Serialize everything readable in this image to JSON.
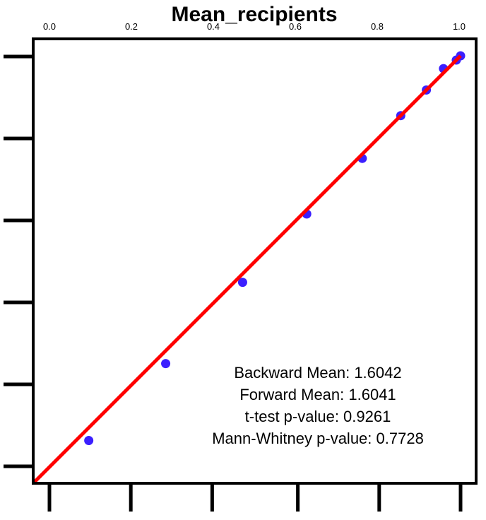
{
  "chart_data": {
    "type": "scatter",
    "title": "Mean_recipients",
    "xlabel": "",
    "ylabel": "",
    "xlim": [
      0,
      1
    ],
    "ylim": [
      0,
      1
    ],
    "x_ticks": [
      0.0,
      0.2,
      0.4,
      0.6,
      0.8,
      1.0
    ],
    "x_tick_labels": [
      "0.0",
      "0.2",
      "0.4",
      "0.6",
      "0.8",
      "1.0"
    ],
    "left_ticks": [
      0.0,
      0.2,
      0.4,
      0.6,
      0.8,
      1.0
    ],
    "bottom_ticks": [
      0.04,
      0.23,
      0.42,
      0.62,
      0.81,
      1.0
    ],
    "grid": false,
    "points": {
      "color": "#3b1fff",
      "x": [
        0.13,
        0.31,
        0.49,
        0.64,
        0.77,
        0.86,
        0.92,
        0.96,
        0.99,
        1.0
      ],
      "y": [
        0.1,
        0.28,
        0.47,
        0.63,
        0.76,
        0.86,
        0.92,
        0.97,
        0.99,
        1.0
      ]
    },
    "reference_line": {
      "color": "#ff0000",
      "from": [
        0,
        0
      ],
      "to": [
        1,
        1
      ]
    },
    "annotations": [
      "Backward Mean: 1.6042",
      "Forward Mean: 1.6041",
      "t-test p-value: 0.9261",
      "Mann-Whitney p-value: 0.7728"
    ]
  }
}
